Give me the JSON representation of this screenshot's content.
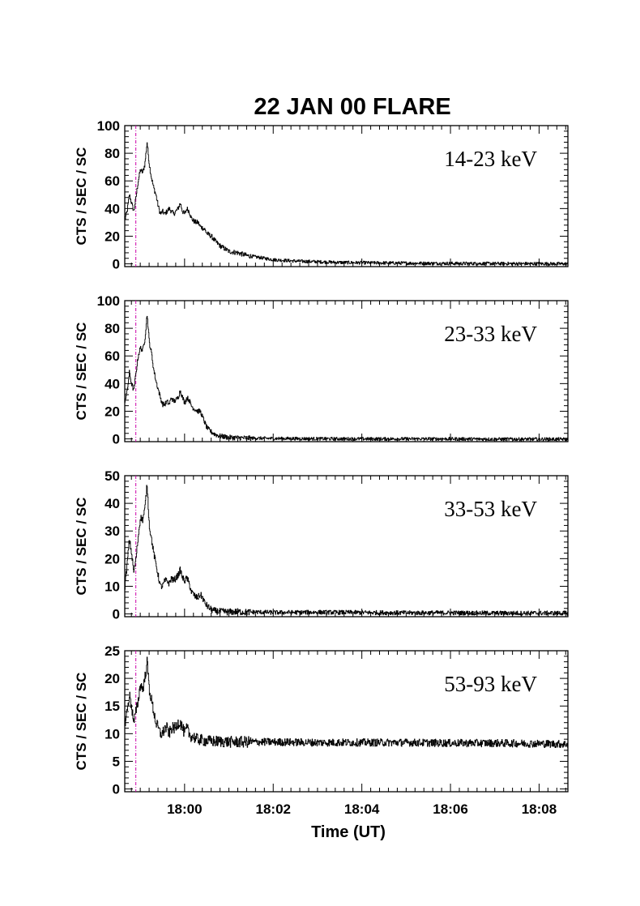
{
  "chart_data": {
    "type": "line",
    "title": "22 JAN 00 FLARE",
    "xlabel": "Time (UT)",
    "x_unit": "minutes after 18:00 UT",
    "xlim": [
      -1.35,
      8.65
    ],
    "xticks": [
      0,
      2,
      4,
      6,
      8
    ],
    "xtick_labels": [
      "18:00",
      "18:02",
      "18:04",
      "18:06",
      "18:08"
    ],
    "marker_line_x": -1.1,
    "marker_line_color": "#cc00aa",
    "grid": false,
    "legend": "none",
    "panels": [
      {
        "band_label": "14-23 keV",
        "ylabel": "CTS / SEC / SC",
        "ylim": [
          -2,
          100
        ],
        "yticks": [
          0,
          20,
          40,
          60,
          80,
          100
        ],
        "series": [
          {
            "color": "#000000",
            "noise": 1.2,
            "x": [
              -1.35,
              -1.3,
              -1.25,
              -1.2,
              -1.15,
              -1.1,
              -1.05,
              -1.0,
              -0.95,
              -0.9,
              -0.85,
              -0.8,
              -0.75,
              -0.7,
              -0.65,
              -0.6,
              -0.55,
              -0.5,
              -0.45,
              -0.4,
              -0.35,
              -0.3,
              -0.25,
              -0.2,
              -0.15,
              -0.1,
              -0.05,
              0.0,
              0.05,
              0.1,
              0.15,
              0.2,
              0.25,
              0.3,
              0.35,
              0.4,
              0.45,
              0.5,
              0.6,
              0.7,
              0.8,
              0.9,
              1.0,
              1.2,
              1.4,
              1.6,
              1.8,
              2.0,
              2.5,
              3.0,
              3.5,
              4.0,
              5.0,
              6.0,
              7.0,
              8.0,
              8.65
            ],
            "y": [
              32,
              38,
              50,
              44,
              38,
              48,
              60,
              68,
              66,
              72,
              88,
              72,
              62,
              55,
              50,
              42,
              36,
              38,
              36,
              38,
              40,
              38,
              36,
              38,
              40,
              44,
              38,
              36,
              40,
              38,
              33,
              31,
              30,
              30,
              27,
              26,
              25,
              22,
              20,
              16,
              13,
              11,
              9,
              8,
              6,
              5,
              4,
              3,
              2,
              1.5,
              1,
              0.8,
              0.5,
              0.3,
              0.2,
              0.1,
              0.0
            ]
          }
        ]
      },
      {
        "band_label": "23-33 keV",
        "ylabel": "CTS / SEC / SC",
        "ylim": [
          -2,
          100
        ],
        "yticks": [
          0,
          20,
          40,
          60,
          80,
          100
        ],
        "series": [
          {
            "color": "#000000",
            "noise": 1.2,
            "x": [
              -1.35,
              -1.3,
              -1.25,
              -1.2,
              -1.15,
              -1.1,
              -1.05,
              -1.0,
              -0.95,
              -0.9,
              -0.85,
              -0.8,
              -0.75,
              -0.7,
              -0.65,
              -0.6,
              -0.55,
              -0.5,
              -0.45,
              -0.4,
              -0.35,
              -0.3,
              -0.25,
              -0.2,
              -0.15,
              -0.1,
              -0.05,
              0.0,
              0.05,
              0.1,
              0.15,
              0.2,
              0.25,
              0.3,
              0.35,
              0.4,
              0.45,
              0.5,
              0.6,
              0.7,
              0.8,
              0.9,
              1.0,
              1.2,
              1.4,
              1.6,
              1.8,
              2.0,
              2.5,
              3.0,
              4.0,
              5.0,
              6.0,
              7.0,
              8.0,
              8.65
            ],
            "y": [
              28,
              34,
              48,
              40,
              35,
              48,
              60,
              66,
              64,
              72,
              90,
              70,
              62,
              50,
              42,
              36,
              30,
              25,
              25,
              27,
              25,
              30,
              27,
              28,
              30,
              35,
              30,
              26,
              30,
              28,
              24,
              22,
              21,
              20,
              20,
              16,
              12,
              8,
              5,
              3,
              2,
              1.5,
              1,
              0.8,
              0.6,
              0.5,
              0.4,
              0.3,
              0.2,
              0.1,
              0,
              0,
              0,
              -0.2,
              -0.2,
              -0.2
            ]
          }
        ]
      },
      {
        "band_label": "33-53 keV",
        "ylabel": "CTS / SEC / SC",
        "ylim": [
          -1,
          50
        ],
        "yticks": [
          0,
          10,
          20,
          30,
          40,
          50
        ],
        "series": [
          {
            "color": "#000000",
            "noise": 0.8,
            "x": [
              -1.35,
              -1.3,
              -1.25,
              -1.2,
              -1.15,
              -1.1,
              -1.05,
              -1.0,
              -0.95,
              -0.9,
              -0.85,
              -0.8,
              -0.75,
              -0.7,
              -0.65,
              -0.6,
              -0.55,
              -0.5,
              -0.45,
              -0.4,
              -0.35,
              -0.3,
              -0.25,
              -0.2,
              -0.15,
              -0.1,
              -0.05,
              0.0,
              0.05,
              0.1,
              0.15,
              0.2,
              0.25,
              0.3,
              0.35,
              0.4,
              0.45,
              0.5,
              0.6,
              0.7,
              0.8,
              0.9,
              1.0,
              1.2,
              1.4,
              1.6,
              2.0,
              3.0,
              4.0,
              5.0,
              6.0,
              7.0,
              8.0,
              8.65
            ],
            "y": [
              10,
              18,
              27,
              22,
              15,
              20,
              28,
              35,
              34,
              38,
              47,
              32,
              27,
              22,
              18,
              14,
              10,
              10,
              12,
              12,
              11,
              13,
              12,
              13,
              14,
              16,
              13,
              12,
              13,
              11,
              8,
              7,
              6,
              6,
              7,
              6,
              4,
              3,
              1.5,
              1,
              0.9,
              0.8,
              0.7,
              0.8,
              0.6,
              0.7,
              0.5,
              0.6,
              0.5,
              0.4,
              0.4,
              0.3,
              0.3,
              0.3
            ]
          }
        ]
      },
      {
        "band_label": "53-93 keV",
        "ylabel": "CTS / SEC / SC",
        "ylim": [
          -0.5,
          25
        ],
        "yticks": [
          0,
          5,
          10,
          15,
          20,
          25
        ],
        "series": [
          {
            "color": "#000000",
            "noise": 0.7,
            "x": [
              -1.35,
              -1.3,
              -1.25,
              -1.2,
              -1.15,
              -1.1,
              -1.05,
              -1.0,
              -0.95,
              -0.9,
              -0.85,
              -0.8,
              -0.75,
              -0.7,
              -0.65,
              -0.6,
              -0.55,
              -0.5,
              -0.45,
              -0.4,
              -0.35,
              -0.3,
              -0.25,
              -0.2,
              -0.15,
              -0.1,
              -0.05,
              0.0,
              0.05,
              0.1,
              0.15,
              0.2,
              0.25,
              0.3,
              0.4,
              0.5,
              0.6,
              0.8,
              1.0,
              1.5,
              2.0,
              3.0,
              4.0,
              5.0,
              6.0,
              7.0,
              8.0,
              8.65
            ],
            "y": [
              12,
              14,
              17,
              15,
              12,
              14,
              16,
              19,
              18,
              20,
              23,
              18,
              16,
              14,
              12,
              11,
              10,
              10,
              11,
              11,
              10,
              11,
              11,
              11,
              12,
              12,
              11,
              10,
              11,
              10,
              9.5,
              9.5,
              9,
              9,
              8.8,
              8.7,
              8.6,
              8.6,
              8.5,
              8.5,
              8.5,
              8.4,
              8.4,
              8.4,
              8.3,
              8.3,
              8.2,
              8.1
            ]
          }
        ]
      }
    ]
  }
}
